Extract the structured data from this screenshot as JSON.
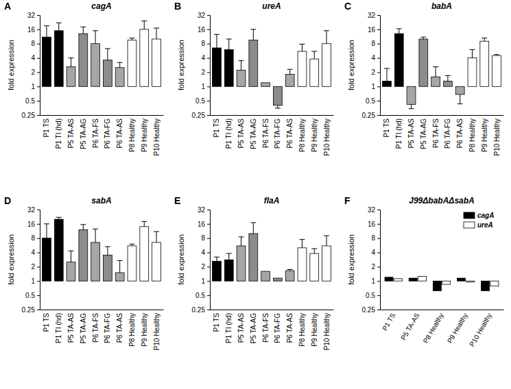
{
  "chart_data": [
    {
      "type": "bar",
      "label": "A",
      "title": "cagA",
      "y_label": "fold expression",
      "log": "y",
      "ylim": [
        0.25,
        32
      ],
      "yticks": [
        0.25,
        0.5,
        1,
        2,
        4,
        8,
        16,
        32
      ],
      "categories": [
        "P1 TS",
        "P1 TI (hd)",
        "P5 TA-AS",
        "P5 TA-AG",
        "P6 TA-FS",
        "P6 TA-FG",
        "P6 TA-AS",
        "P8 Healthy",
        "P9 Healthy",
        "P10 Healthy"
      ],
      "values": [
        11,
        15,
        2.6,
        13,
        8,
        3.6,
        2.5,
        9.5,
        16,
        10
      ],
      "errors": [
        8,
        7,
        1.4,
        5,
        7,
        2.7,
        0.7,
        1,
        8,
        7
      ],
      "colors": [
        "#000000",
        "#000000",
        "#a6a6a6",
        "#8c8c8c",
        "#a6a6a6",
        "#8c8c8c",
        "#a6a6a6",
        "#ffffff",
        "#ffffff",
        "#ffffff"
      ]
    },
    {
      "type": "bar",
      "label": "B",
      "title": "ureA",
      "y_label": "fold expression",
      "log": "y",
      "ylim": [
        0.25,
        32
      ],
      "yticks": [
        0.25,
        0.5,
        1,
        2,
        4,
        8,
        16,
        32
      ],
      "categories": [
        "P1 TS",
        "P1 TI (hd)",
        "P5 TA-AS",
        "P5 TA-AG",
        "P6 TA-FS",
        "P6 TA-FG",
        "P6 TA-AS",
        "P8 Healthy",
        "P9 Healthy",
        "P10 Healthy"
      ],
      "values": [
        6.5,
        6,
        2.2,
        9.5,
        1.2,
        0.4,
        1.8,
        5.5,
        3.8,
        8
      ],
      "errors": [
        6,
        4,
        1.3,
        6.5,
        0,
        0.05,
        0.5,
        2.3,
        1.7,
        7
      ],
      "colors": [
        "#000000",
        "#000000",
        "#a6a6a6",
        "#8c8c8c",
        "#a6a6a6",
        "#8c8c8c",
        "#a6a6a6",
        "#ffffff",
        "#ffffff",
        "#ffffff"
      ]
    },
    {
      "type": "bar",
      "label": "C",
      "title": "babA",
      "y_label": "fold expression",
      "log": "y",
      "ylim": [
        0.25,
        32
      ],
      "yticks": [
        0.25,
        0.5,
        1,
        2,
        4,
        8,
        16,
        32
      ],
      "categories": [
        "P1 TS",
        "P1 TI (hd)",
        "P5 TA-AS",
        "P5 TA-AG",
        "P6 TA-FS",
        "P6 TA-FG",
        "P6 TA-AS",
        "P8 Healthy",
        "P9 Healthy",
        "P10 Healthy"
      ],
      "values": [
        1.3,
        13,
        0.42,
        10,
        1.6,
        1.3,
        0.68,
        4,
        9,
        4.5
      ],
      "errors": [
        1.1,
        3.5,
        0.08,
        1,
        1,
        0.4,
        0.25,
        2,
        1.5,
        0.2
      ],
      "colors": [
        "#000000",
        "#000000",
        "#a6a6a6",
        "#8c8c8c",
        "#a6a6a6",
        "#8c8c8c",
        "#a6a6a6",
        "#ffffff",
        "#ffffff",
        "#ffffff"
      ]
    },
    {
      "type": "bar",
      "label": "D",
      "title": "sabA",
      "y_label": "fold expression",
      "log": "y",
      "ylim": [
        0.25,
        32
      ],
      "yticks": [
        0.25,
        0.5,
        1,
        2,
        4,
        8,
        16,
        32
      ],
      "categories": [
        "P1 TS",
        "P1 TI (hd)",
        "P5 TA-AS",
        "P5 TA-AG",
        "P6 TA-FS",
        "P6 TA-FG",
        "P6 TA-AS",
        "P8 Healthy",
        "P9 Healthy",
        "P10 Healthy"
      ],
      "values": [
        8,
        20,
        2.5,
        12,
        6.5,
        3.5,
        1.5,
        5.5,
        14,
        6.5
      ],
      "errors": [
        8,
        2,
        1.8,
        3.5,
        6,
        1.8,
        1.2,
        0.5,
        4,
        4.5
      ],
      "colors": [
        "#000000",
        "#000000",
        "#a6a6a6",
        "#8c8c8c",
        "#a6a6a6",
        "#8c8c8c",
        "#a6a6a6",
        "#ffffff",
        "#ffffff",
        "#ffffff"
      ]
    },
    {
      "type": "bar",
      "label": "E",
      "title": "flaA",
      "y_label": "fold expression",
      "log": "y",
      "ylim": [
        0.25,
        32
      ],
      "yticks": [
        0.25,
        0.5,
        1,
        2,
        4,
        8,
        16,
        32
      ],
      "categories": [
        "P1 TS",
        "P1 TI (hd)",
        "P5 TA-AS",
        "P5 TA-AG",
        "P6 TA-FS",
        "P6 TA-FG",
        "P6 TA-AS",
        "P8 Healthy",
        "P9 Healthy",
        "P10 Healthy"
      ],
      "values": [
        2.6,
        2.8,
        5.5,
        10,
        1.6,
        1.15,
        1.65,
        5,
        3.8,
        5.5
      ],
      "errors": [
        0.6,
        1,
        3,
        7,
        0,
        0,
        0.1,
        2.5,
        1,
        3.5
      ],
      "colors": [
        "#000000",
        "#000000",
        "#a6a6a6",
        "#8c8c8c",
        "#a6a6a6",
        "#8c8c8c",
        "#a6a6a6",
        "#ffffff",
        "#ffffff",
        "#ffffff"
      ]
    },
    {
      "type": "bar",
      "label": "F",
      "title": "J99ΔbabAΔsabA",
      "y_label": "fold expression",
      "log": "y",
      "ylim": [
        0.25,
        32
      ],
      "yticks": [
        0.25,
        0.5,
        1,
        2,
        4,
        8,
        16,
        32
      ],
      "legend": "upper right",
      "categories": [
        "P1 TS",
        "P5 TA-AS",
        "P8 Healthy",
        "P9 Healthy",
        "P10 Healthy"
      ],
      "series": [
        {
          "name": "cagA",
          "color": "#000000",
          "values": [
            1.2,
            1.15,
            0.62,
            1.15,
            0.62
          ]
        },
        {
          "name": "ureA",
          "color": "#ffffff",
          "values": [
            1.12,
            1.25,
            0.85,
            0.95,
            0.78
          ]
        }
      ]
    }
  ]
}
